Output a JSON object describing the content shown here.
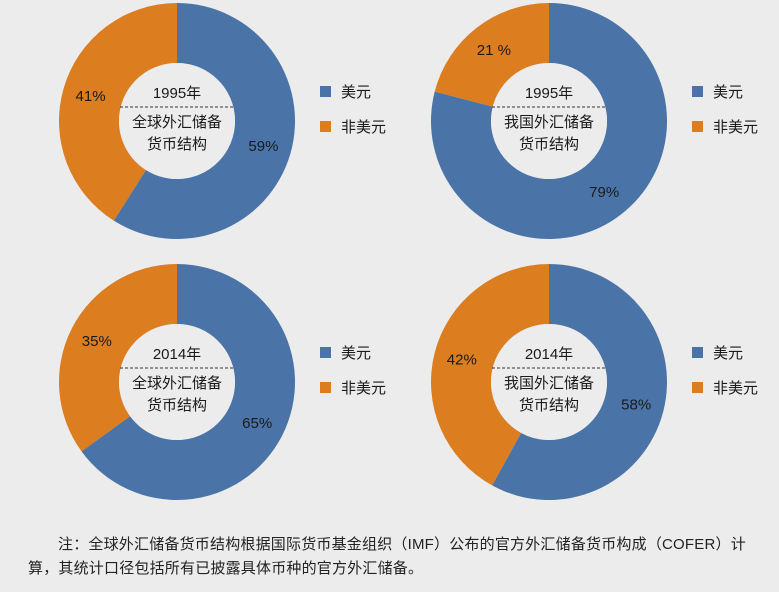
{
  "chart_data": [
    {
      "type": "pie",
      "donut": true,
      "center_year": "1995年",
      "center_line1": "全球外汇储备",
      "center_line2": "货币结构",
      "slices": [
        {
          "name": "美元",
          "value": 59,
          "label": "59%",
          "color": "#4a74a8"
        },
        {
          "name": "非美元",
          "value": 41,
          "label": "41%",
          "color": "#dc7d1f"
        }
      ]
    },
    {
      "type": "pie",
      "donut": true,
      "center_year": "1995年",
      "center_line1": "我国外汇储备",
      "center_line2": "货币结构",
      "slices": [
        {
          "name": "美元",
          "value": 79,
          "label": "79%",
          "color": "#4a74a8"
        },
        {
          "name": "非美元",
          "value": 21,
          "label": "21 %",
          "color": "#dc7d1f"
        }
      ]
    },
    {
      "type": "pie",
      "donut": true,
      "center_year": "2014年",
      "center_line1": "全球外汇储备",
      "center_line2": "货币结构",
      "slices": [
        {
          "name": "美元",
          "value": 65,
          "label": "65%",
          "color": "#4a74a8"
        },
        {
          "name": "非美元",
          "value": 35,
          "label": "35%",
          "color": "#dc7d1f"
        }
      ]
    },
    {
      "type": "pie",
      "donut": true,
      "center_year": "2014年",
      "center_line1": "我国外汇储备",
      "center_line2": "货币结构",
      "slices": [
        {
          "name": "美元",
          "value": 58,
          "label": "58%",
          "color": "#4a74a8"
        },
        {
          "name": "非美元",
          "value": 42,
          "label": "42%",
          "color": "#dc7d1f"
        }
      ]
    }
  ],
  "legend": [
    {
      "name": "美元",
      "color": "#4a74a8"
    },
    {
      "name": "非美元",
      "color": "#dc7d1f"
    }
  ],
  "note": "注：全球外汇储备货币结构根据国际货币基金组织（IMF）公布的官方外汇储备货币构成（COFER）计算，其统计口径包括所有已披露具体币种的官方外汇储备。"
}
